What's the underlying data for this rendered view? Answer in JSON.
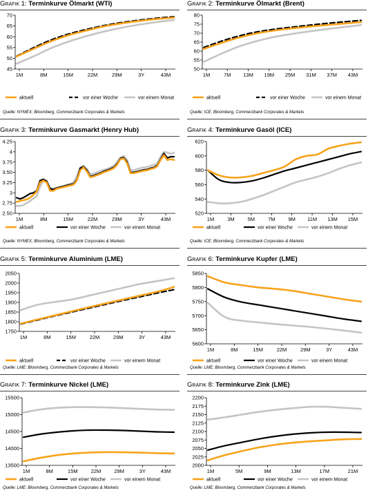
{
  "colors": {
    "aktuell": "#f7a21b",
    "woche": "#000000",
    "monat": "#c4c4c4"
  },
  "chart_data": [
    {
      "type": "line",
      "prefix": "Grafik 1:",
      "title": "Terminkurve Ölmarkt (WTI)",
      "source": "Quelle: NYMEX; Bloomberg, Commerzbank Corporates & Markets",
      "xticks": [
        "1M",
        "8M",
        "15M",
        "22M",
        "29M",
        "3Y",
        "43M"
      ],
      "yticks": [
        45,
        50,
        55,
        60,
        65,
        70
      ],
      "ylim": [
        45,
        70
      ],
      "n": 48,
      "grid": false,
      "legend": "bottom",
      "series": [
        {
          "name": "aktuell",
          "style": "aktuell",
          "values": [
            50.8,
            54.5,
            58.0,
            60.8,
            62.9,
            64.8,
            66.2,
            67.3,
            68.2,
            68.9
          ]
        },
        {
          "name": "vor einer Woche",
          "style": "woche",
          "values": [
            51.0,
            55.0,
            58.6,
            61.3,
            63.4,
            65.2,
            66.6,
            67.7,
            68.6,
            69.3
          ]
        },
        {
          "name": "vor einem Monat",
          "style": "monat",
          "values": [
            47.5,
            51.0,
            54.8,
            57.8,
            60.3,
            62.4,
            64.2,
            65.6,
            66.8,
            67.8
          ]
        }
      ]
    },
    {
      "type": "line",
      "prefix": "Grafik 2:",
      "title": "Terminkurve Ölmarkt (Brent)",
      "source": "Quelle: ICE; Bloomberg, Commerzbank Corporates & Markets",
      "xticks": [
        "1M",
        "7M",
        "13M",
        "19M",
        "25M",
        "31M",
        "37M",
        "43M"
      ],
      "yticks": [
        50,
        55,
        60,
        65,
        70,
        75,
        80
      ],
      "ylim": [
        50,
        80
      ],
      "n": 48,
      "grid": false,
      "legend": "bottom",
      "series": [
        {
          "name": "aktuell",
          "style": "aktuell",
          "values": [
            61.2,
            64.5,
            67.5,
            69.8,
            71.4,
            72.6,
            73.6,
            74.5,
            75.3,
            76.2
          ]
        },
        {
          "name": "vor einer Woche",
          "style": "woche",
          "values": [
            62.0,
            65.5,
            68.4,
            70.6,
            72.1,
            73.3,
            74.4,
            75.4,
            76.3,
            77.1
          ]
        },
        {
          "name": "vor einem Monat",
          "style": "monat",
          "values": [
            54.0,
            58.5,
            62.5,
            65.5,
            67.8,
            69.5,
            70.9,
            72.2,
            73.4,
            74.5
          ]
        }
      ]
    },
    {
      "type": "line",
      "prefix": "Grafik 3:",
      "title": "Terminkurve Gasmarkt (Henry Hub)",
      "source": "Quelle: NYMEX; Bloomberg, Commerzbank Corporates & Markets",
      "xticks": [
        "1M",
        "8M",
        "15M",
        "22M",
        "29M",
        "3Y",
        "43M"
      ],
      "yticks": [
        2.5,
        2.75,
        3.0,
        3.25,
        3.5,
        3.75,
        4.0,
        4.25
      ],
      "ylim": [
        2.5,
        4.25
      ],
      "n": 48,
      "grid": false,
      "legend": "bottom",
      "series": [
        {
          "name": "aktuell",
          "style": "aktuell",
          "values": [
            2.78,
            2.8,
            2.82,
            2.84,
            2.88,
            2.95,
            3.03,
            3.25,
            3.3,
            3.25,
            3.05,
            3.05,
            3.1,
            3.12,
            3.14,
            3.16,
            3.18,
            3.2,
            3.3,
            3.55,
            3.62,
            3.52,
            3.38,
            3.4,
            3.43,
            3.46,
            3.5,
            3.53,
            3.56,
            3.6,
            3.68,
            3.82,
            3.84,
            3.72,
            3.48,
            3.48,
            3.5,
            3.52,
            3.54,
            3.55,
            3.58,
            3.6,
            3.65,
            3.8,
            3.92,
            3.8,
            3.82,
            3.8
          ]
        },
        {
          "name": "vor einer Woche",
          "style": "woche",
          "values": [
            2.88,
            2.85,
            2.88,
            2.93,
            2.98,
            3.0,
            3.05,
            3.3,
            3.33,
            3.28,
            3.1,
            3.08,
            3.12,
            3.14,
            3.16,
            3.18,
            3.2,
            3.22,
            3.32,
            3.6,
            3.64,
            3.55,
            3.4,
            3.42,
            3.45,
            3.48,
            3.52,
            3.55,
            3.58,
            3.62,
            3.7,
            3.84,
            3.86,
            3.75,
            3.5,
            3.5,
            3.52,
            3.54,
            3.56,
            3.57,
            3.6,
            3.62,
            3.67,
            3.82,
            3.96,
            3.85,
            3.88,
            3.88
          ]
        },
        {
          "name": "vor einem Monat",
          "style": "monat",
          "values": [
            2.68,
            2.68,
            2.7,
            2.75,
            2.8,
            2.86,
            2.92,
            3.15,
            3.3,
            3.28,
            3.12,
            3.1,
            3.12,
            3.14,
            3.16,
            3.2,
            3.22,
            3.25,
            3.4,
            3.62,
            3.66,
            3.58,
            3.45,
            3.47,
            3.5,
            3.53,
            3.56,
            3.58,
            3.62,
            3.66,
            3.75,
            3.86,
            3.9,
            3.8,
            3.55,
            3.55,
            3.58,
            3.6,
            3.62,
            3.63,
            3.66,
            3.68,
            3.72,
            3.88,
            4.0,
            3.98,
            3.95,
            3.98
          ]
        }
      ]
    },
    {
      "type": "line",
      "prefix": "Grafik 4:",
      "title": "Terminkurve Gasöl (ICE)",
      "source": "Quelle: ICE; Bloomberg, Commerzbank Corporates & Markets",
      "xticks": [
        "1M",
        "3M",
        "5M",
        "7M",
        "9M",
        "11M",
        "13M",
        "15M"
      ],
      "yticks": [
        520,
        540,
        560,
        580,
        600,
        620
      ],
      "ylim": [
        520,
        620
      ],
      "n": 15,
      "grid": false,
      "legend": "bottom",
      "series": [
        {
          "name": "aktuell",
          "style": "aktuell",
          "values": [
            580,
            573,
            570,
            570,
            572,
            576,
            580,
            585,
            595,
            600,
            602,
            610,
            614,
            617,
            619
          ]
        },
        {
          "name": "vor einer Woche",
          "style": "woche",
          "values": [
            580,
            567,
            563,
            563,
            565,
            569,
            574,
            579,
            583,
            587,
            591,
            595,
            599,
            603,
            606
          ]
        },
        {
          "name": "vor einem Monat",
          "style": "monat",
          "values": [
            536,
            534,
            534,
            536,
            540,
            545,
            551,
            557,
            563,
            567,
            571,
            576,
            582,
            587,
            591
          ]
        }
      ]
    },
    {
      "type": "line",
      "prefix": "Grafik 5:",
      "title": "Terminkurve Aluminium (LME)",
      "source": "Quelle: LME; Bloomberg, Commerzbank Corporates & Markets",
      "xticks": [
        "1M",
        "8M",
        "15M",
        "22M",
        "29M",
        "3Y",
        "43M"
      ],
      "yticks": [
        1750,
        1800,
        1850,
        1900,
        1950,
        2000,
        2050
      ],
      "ylim": [
        1750,
        2050
      ],
      "n": 48,
      "grid": false,
      "legend": "bottom",
      "series": [
        {
          "name": "aktuell",
          "style": "aktuell",
          "values": [
            1790,
            1812,
            1833,
            1854,
            1875,
            1895,
            1915,
            1935,
            1955,
            1980
          ]
        },
        {
          "name": "vor einer Woche",
          "style": "woche",
          "values": [
            1788,
            1809,
            1830,
            1850,
            1870,
            1890,
            1910,
            1929,
            1948,
            1966
          ]
        },
        {
          "name": "vor einem Monat",
          "style": "monat",
          "values": [
            1860,
            1888,
            1902,
            1915,
            1935,
            1955,
            1975,
            1995,
            2010,
            2025
          ]
        }
      ]
    },
    {
      "type": "line",
      "prefix": "Grafik 6:",
      "title": "Terminkurve Kupfer (LME)",
      "source": "Quelle: LME; Bloomberg, Commerzbank Corporates & Markets",
      "xticks": [
        "1M",
        "8M",
        "15M",
        "22M",
        "29M",
        "3Y",
        "43M"
      ],
      "yticks": [
        5600,
        5650,
        5700,
        5750,
        5800,
        5850
      ],
      "ylim": [
        5600,
        5850
      ],
      "n": 48,
      "grid": false,
      "legend": "bottom",
      "series": [
        {
          "name": "aktuell",
          "style": "aktuell",
          "values": [
            5840,
            5818,
            5808,
            5800,
            5795,
            5788,
            5778,
            5768,
            5758,
            5750
          ]
        },
        {
          "name": "vor einer Woche",
          "style": "woche",
          "values": [
            5795,
            5765,
            5748,
            5738,
            5728,
            5718,
            5708,
            5698,
            5688,
            5680
          ]
        },
        {
          "name": "vor einem Monat",
          "style": "monat",
          "values": [
            5745,
            5695,
            5682,
            5676,
            5670,
            5665,
            5660,
            5654,
            5647,
            5640
          ]
        }
      ]
    },
    {
      "type": "line",
      "prefix": "Grafik 7:",
      "title": "Terminkurve Nickel (LME)",
      "source": "Quelle: LME; Bloomberg, Commerzbank Corporates & Markets",
      "xticks": [
        "1M",
        "8M",
        "15M",
        "22M",
        "29M",
        "3Y",
        "43M"
      ],
      "yticks": [
        13500,
        14000,
        14500,
        15000,
        15500
      ],
      "ylim": [
        13500,
        15500
      ],
      "n": 48,
      "grid": false,
      "legend": "bottom",
      "series": [
        {
          "name": "aktuell",
          "style": "aktuell",
          "values": [
            13620,
            13720,
            13800,
            13850,
            13880,
            13890,
            13885,
            13875,
            13860,
            13850
          ]
        },
        {
          "name": "vor einer Woche",
          "style": "woche",
          "values": [
            14330,
            14420,
            14480,
            14520,
            14540,
            14540,
            14530,
            14510,
            14490,
            14480
          ]
        },
        {
          "name": "vor einem Monat",
          "style": "monat",
          "values": [
            15060,
            15150,
            15200,
            15220,
            15220,
            15210,
            15190,
            15170,
            15150,
            15140
          ]
        }
      ]
    },
    {
      "type": "line",
      "prefix": "Grafik 8:",
      "title": "Terminkurve Zink (LME)",
      "source": "Quelle: LME; Bloomberg, Commerzbank Corporates & Markets",
      "xticks": [
        "1M",
        "5M",
        "9M",
        "13M",
        "17M",
        "21M"
      ],
      "yticks": [
        2000,
        2025,
        2050,
        2075,
        2100,
        2125,
        2150,
        2175,
        2200
      ],
      "ylim": [
        2000,
        2200
      ],
      "n": 24,
      "grid": false,
      "legend": "bottom",
      "series": [
        {
          "name": "aktuell",
          "style": "aktuell",
          "values": [
            2015,
            2030,
            2042,
            2053,
            2061,
            2067,
            2071,
            2074,
            2077,
            2078
          ]
        },
        {
          "name": "vor einer Woche",
          "style": "woche",
          "values": [
            2045,
            2058,
            2068,
            2078,
            2086,
            2092,
            2096,
            2098,
            2098,
            2097
          ]
        },
        {
          "name": "vor einem Monat",
          "style": "monat",
          "values": [
            2135,
            2142,
            2150,
            2158,
            2164,
            2169,
            2173,
            2173,
            2170,
            2167
          ]
        }
      ]
    }
  ]
}
